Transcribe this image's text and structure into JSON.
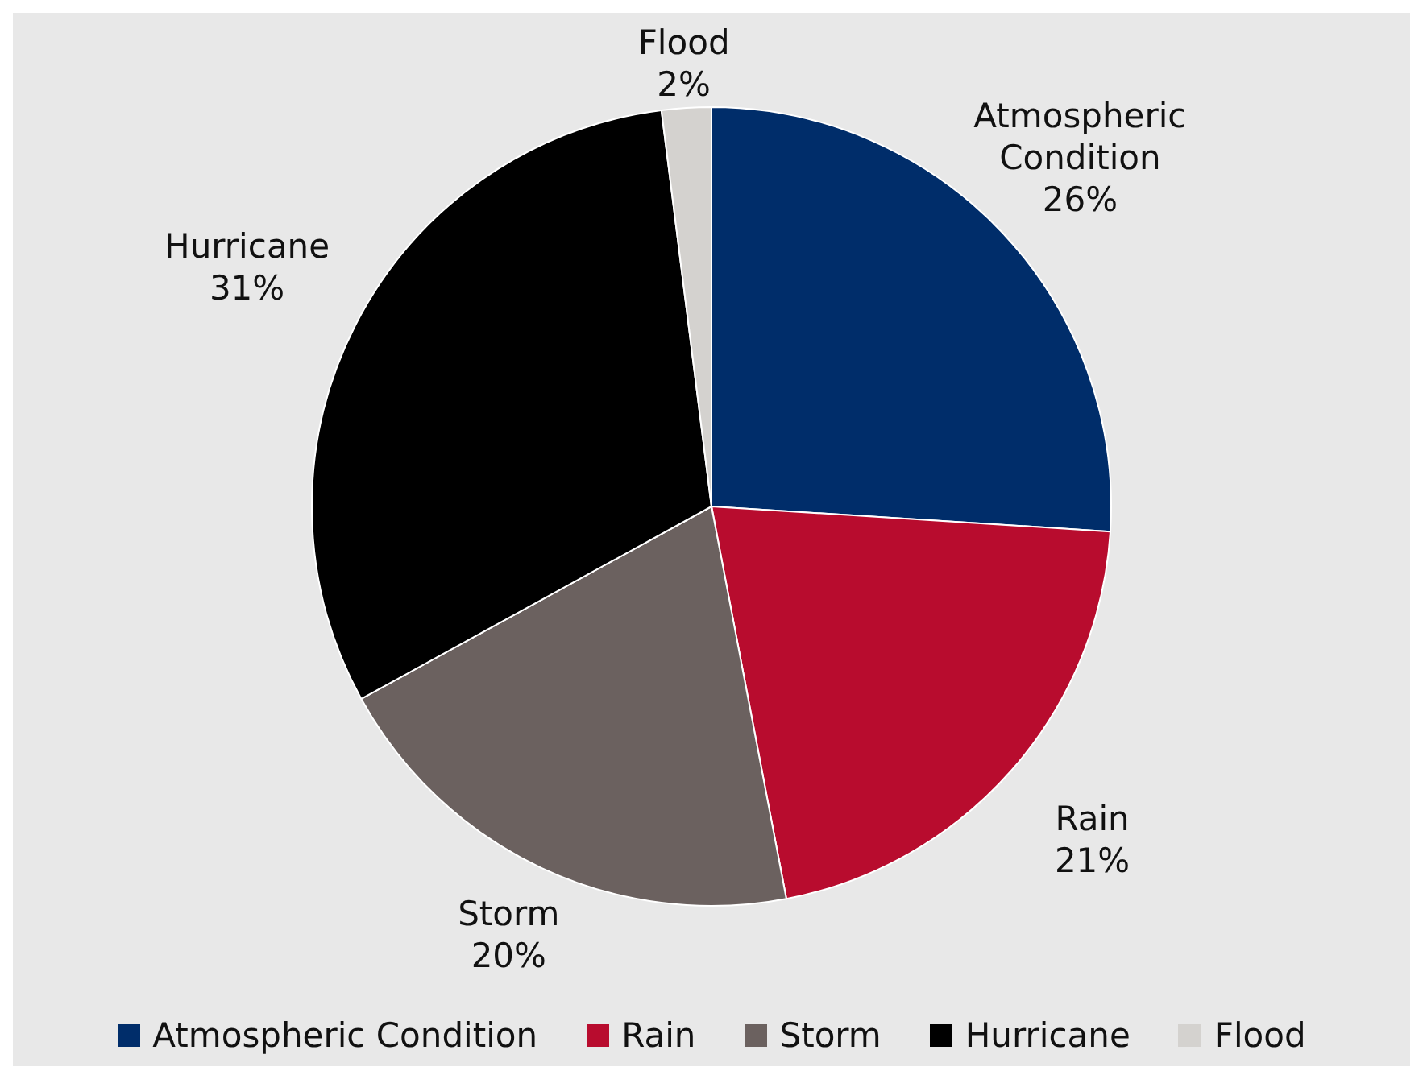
{
  "chart_data": {
    "type": "pie",
    "categories": [
      "Atmospheric Condition",
      "Rain",
      "Storm",
      "Hurricane",
      "Flood"
    ],
    "values": [
      26,
      21,
      20,
      31,
      2
    ],
    "value_labels": [
      "26%",
      "21%",
      "20%",
      "31%",
      "2%"
    ],
    "colors": [
      "#002d6a",
      "#b80c2e",
      "#6b615f",
      "#000000",
      "#d4d2cf"
    ],
    "legend": "bottom"
  }
}
